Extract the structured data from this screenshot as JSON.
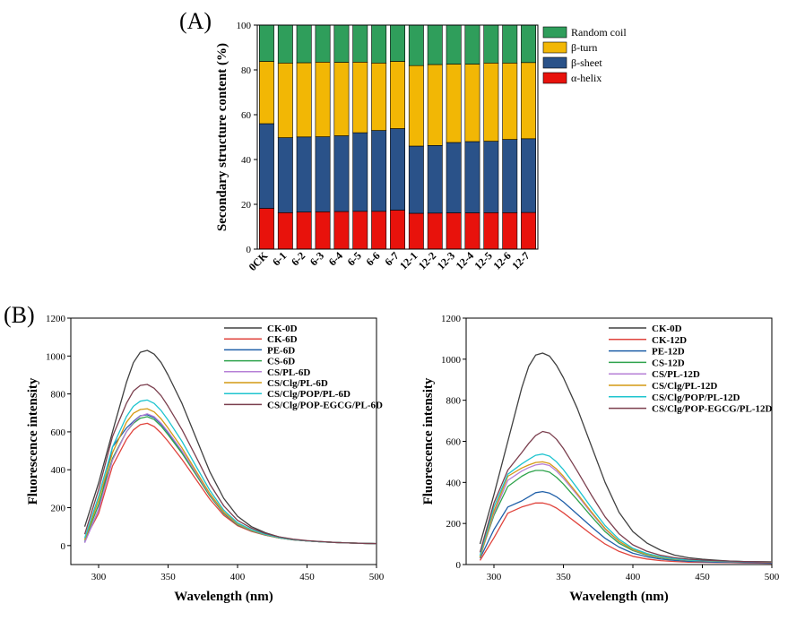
{
  "figure": {
    "panel_a_label": "(A)",
    "panel_b_label": "(B)"
  },
  "chart_data": [
    {
      "type": "bar",
      "stacked": true,
      "panel": "A",
      "title": "",
      "xlabel": "",
      "ylabel": "Secondary structure content (%)",
      "ylim": [
        0,
        100
      ],
      "yticks": [
        0,
        20,
        40,
        60,
        80,
        100
      ],
      "categories": [
        "0CK",
        "6-1",
        "6-2",
        "6-3",
        "6-4",
        "6-5",
        "6-6",
        "6-7",
        "12-1",
        "12-2",
        "12-3",
        "12-4",
        "12-5",
        "12-6",
        "12-7"
      ],
      "series": [
        {
          "name": "α-helix",
          "color": "#e8120c",
          "values": [
            18.2,
            16.3,
            16.6,
            16.7,
            16.8,
            16.9,
            16.9,
            17.4,
            16.0,
            16.1,
            16.2,
            16.2,
            16.3,
            16.3,
            16.4
          ]
        },
        {
          "name": "β-sheet",
          "color": "#2a5289",
          "values": [
            37.8,
            33.5,
            33.5,
            33.5,
            33.8,
            35.1,
            36.1,
            36.4,
            30.0,
            30.2,
            31.4,
            31.8,
            31.9,
            32.7,
            32.9
          ]
        },
        {
          "name": "β-turn",
          "color": "#f2b705",
          "values": [
            27.8,
            33.3,
            33.1,
            33.3,
            32.8,
            31.5,
            30.1,
            30.0,
            35.9,
            36.1,
            35.0,
            34.6,
            34.9,
            34.1,
            34.0
          ]
        },
        {
          "name": "Random coil",
          "color": "#2f9e5b",
          "values": [
            16.2,
            16.9,
            16.8,
            16.5,
            16.6,
            16.5,
            16.9,
            16.2,
            18.1,
            17.6,
            17.4,
            17.4,
            16.9,
            16.9,
            16.7
          ]
        }
      ],
      "legend_order": [
        "Random coil",
        "β-turn",
        "β-sheet",
        "α-helix"
      ],
      "legend_position": "top-right"
    },
    {
      "type": "line",
      "panel": "B-left",
      "xlabel": "Wavelength (nm)",
      "ylabel": "Fluorescence intensity",
      "xlim": [
        280,
        500
      ],
      "ylim": [
        -100,
        1200
      ],
      "xticks": [
        300,
        350,
        400,
        450,
        500
      ],
      "yticks": [
        0,
        200,
        400,
        600,
        800,
        1000,
        1200
      ],
      "x": [
        290,
        300,
        310,
        320,
        325,
        330,
        335,
        340,
        345,
        350,
        360,
        370,
        380,
        390,
        400,
        410,
        420,
        430,
        440,
        450,
        460,
        470,
        480,
        490,
        500
      ],
      "series": [
        {
          "name": "CK-0D",
          "color": "#404040",
          "values": [
            100,
            330,
            600,
            860,
            965,
            1020,
            1030,
            1010,
            965,
            900,
            750,
            570,
            390,
            250,
            155,
            100,
            68,
            45,
            32,
            25,
            21,
            17,
            14,
            12,
            10
          ]
        },
        {
          "name": "CK-6D",
          "color": "#e0443d",
          "values": [
            30,
            170,
            420,
            560,
            610,
            638,
            645,
            628,
            593,
            550,
            455,
            350,
            245,
            160,
            105,
            75,
            55,
            40,
            30,
            25,
            20,
            17,
            14,
            12,
            10
          ]
        },
        {
          "name": "PE-6D",
          "color": "#1f5fa8",
          "values": [
            20,
            190,
            520,
            620,
            655,
            685,
            690,
            675,
            640,
            595,
            495,
            380,
            265,
            170,
            110,
            78,
            56,
            41,
            31,
            25,
            20,
            17,
            14,
            12,
            10
          ]
        },
        {
          "name": "CS-6D",
          "color": "#2fa34c",
          "values": [
            30,
            215,
            460,
            600,
            645,
            672,
            680,
            665,
            630,
            585,
            487,
            375,
            262,
            170,
            110,
            78,
            56,
            41,
            31,
            25,
            20,
            17,
            14,
            12,
            10
          ]
        },
        {
          "name": "CS/PL-6D",
          "color": "#b67fd6",
          "values": [
            15,
            190,
            450,
            600,
            650,
            683,
            695,
            680,
            645,
            600,
            500,
            385,
            270,
            175,
            113,
            80,
            57,
            42,
            32,
            25,
            20,
            17,
            14,
            12,
            10
          ]
        },
        {
          "name": "CS/Clg/PL-6D",
          "color": "#d49a14",
          "values": [
            30,
            240,
            490,
            650,
            698,
            718,
            722,
            705,
            668,
            620,
            515,
            395,
            275,
            178,
            115,
            81,
            58,
            42,
            32,
            25,
            20,
            17,
            14,
            12,
            10
          ]
        },
        {
          "name": "CS/Clg/POP/PL-6D",
          "color": "#1fc4cf",
          "values": [
            40,
            260,
            520,
            680,
            735,
            762,
            768,
            750,
            712,
            662,
            550,
            420,
            292,
            188,
            120,
            84,
            60,
            43,
            32,
            25,
            20,
            17,
            14,
            12,
            10
          ]
        },
        {
          "name": "CS/Clg/POP-EGCG/PL-6D",
          "color": "#7b3f4e",
          "values": [
            60,
            295,
            575,
            750,
            815,
            845,
            850,
            830,
            790,
            735,
            612,
            470,
            325,
            210,
            133,
            92,
            64,
            46,
            34,
            26,
            21,
            17,
            14,
            12,
            10
          ]
        }
      ],
      "legend_position": "top-right"
    },
    {
      "type": "line",
      "panel": "B-right",
      "xlabel": "Wavelength (nm)",
      "ylabel": "Fluorescence intensity",
      "xlim": [
        280,
        500
      ],
      "ylim": [
        0,
        1200
      ],
      "xticks": [
        300,
        350,
        400,
        450,
        500
      ],
      "yticks": [
        0,
        200,
        400,
        600,
        800,
        1000,
        1200
      ],
      "x": [
        290,
        300,
        310,
        320,
        325,
        330,
        335,
        340,
        345,
        350,
        360,
        370,
        380,
        390,
        400,
        410,
        420,
        430,
        440,
        450,
        460,
        470,
        480,
        490,
        500
      ],
      "series": [
        {
          "name": "CK-0D",
          "color": "#404040",
          "values": [
            100,
            340,
            600,
            860,
            965,
            1020,
            1030,
            1015,
            970,
            910,
            760,
            580,
            400,
            255,
            160,
            105,
            70,
            46,
            33,
            26,
            21,
            17,
            14,
            12,
            10
          ]
        },
        {
          "name": "CK-12D",
          "color": "#e0443d",
          "values": [
            20,
            130,
            250,
            280,
            290,
            300,
            300,
            292,
            275,
            252,
            200,
            148,
            100,
            64,
            40,
            27,
            19,
            15,
            12,
            11,
            10,
            9,
            8,
            7,
            6
          ]
        },
        {
          "name": "PE-12D",
          "color": "#1f5fa8",
          "values": [
            30,
            170,
            280,
            310,
            330,
            350,
            355,
            348,
            330,
            305,
            245,
            185,
            128,
            85,
            55,
            38,
            27,
            20,
            16,
            14,
            12,
            11,
            10,
            9,
            8
          ]
        },
        {
          "name": "CS-12D",
          "color": "#2fa34c",
          "values": [
            40,
            240,
            380,
            430,
            448,
            458,
            458,
            450,
            425,
            392,
            315,
            235,
            160,
            104,
            68,
            46,
            33,
            25,
            21,
            19,
            17,
            16,
            15,
            14,
            13
          ]
        },
        {
          "name": "CS/PL-12D",
          "color": "#b67fd6",
          "values": [
            35,
            250,
            410,
            455,
            472,
            485,
            490,
            482,
            455,
            420,
            338,
            252,
            172,
            112,
            72,
            49,
            35,
            26,
            21,
            18,
            16,
            15,
            14,
            13,
            12
          ]
        },
        {
          "name": "CS/Clg/PL-12D",
          "color": "#d49a14",
          "values": [
            35,
            260,
            430,
            470,
            485,
            497,
            500,
            492,
            465,
            430,
            345,
            258,
            176,
            114,
            73,
            50,
            35,
            26,
            21,
            18,
            16,
            15,
            14,
            13,
            12
          ]
        },
        {
          "name": "CS/Clg/POP/PL-12D",
          "color": "#1fc4cf",
          "values": [
            45,
            280,
            440,
            490,
            512,
            532,
            538,
            528,
            500,
            462,
            372,
            278,
            190,
            123,
            79,
            54,
            38,
            28,
            22,
            19,
            17,
            16,
            15,
            14,
            13
          ]
        },
        {
          "name": "CS/Clg/POP-EGCG/PL-12D",
          "color": "#7b3f4e",
          "values": [
            60,
            300,
            460,
            545,
            590,
            628,
            648,
            640,
            610,
            565,
            455,
            340,
            232,
            150,
            96,
            65,
            45,
            33,
            26,
            22,
            19,
            17,
            15,
            14,
            13
          ]
        }
      ],
      "legend_position": "top-right"
    }
  ]
}
